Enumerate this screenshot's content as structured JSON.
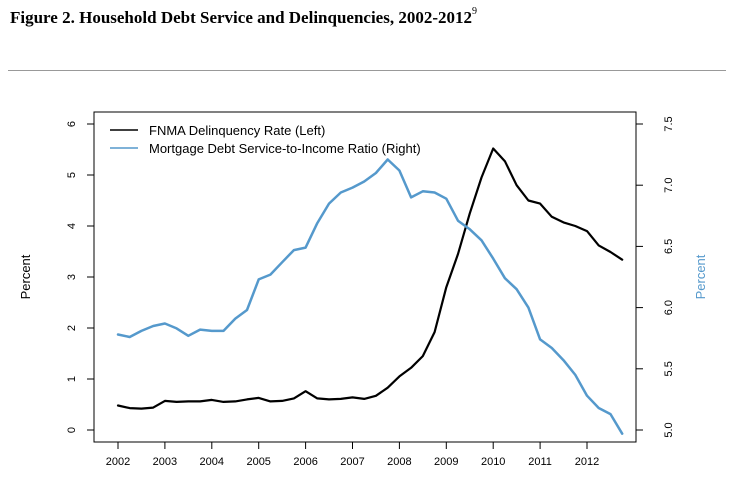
{
  "figure": {
    "title": "Figure 2. Household Debt Service and Delinquencies, 2002-2012",
    "footnote_marker": "9"
  },
  "chart_data": {
    "type": "line",
    "ylabel_left": "Percent",
    "ylabel_right": "Percent",
    "left_axis": {
      "ylim": [
        0,
        6
      ],
      "ticks": [
        0,
        1,
        2,
        3,
        4,
        5,
        6
      ]
    },
    "right_axis": {
      "ylim": [
        5.0,
        7.5
      ],
      "ticks": [
        5.0,
        5.5,
        6.0,
        6.5,
        7.0,
        7.5
      ],
      "tick_labels": [
        "5.0",
        "5.5",
        "6.0",
        "6.5",
        "7.0",
        "7.5"
      ]
    },
    "x_axis": {
      "ticks": [
        2002,
        2003,
        2004,
        2005,
        2006,
        2007,
        2008,
        2009,
        2010,
        2011,
        2012
      ],
      "tick_labels": [
        "2002",
        "2003",
        "2004",
        "2005",
        "2006",
        "2007",
        "2008",
        "2009",
        "2010",
        "2011",
        "2012"
      ]
    },
    "legend": {
      "placement": "top-left"
    },
    "grid": false,
    "series": [
      {
        "name": "FNMA Delinquency Rate (Left)",
        "axis": "left",
        "color": "#000000",
        "x": [
          2002.0,
          2002.25,
          2002.5,
          2002.75,
          2003.0,
          2003.25,
          2003.5,
          2003.75,
          2004.0,
          2004.25,
          2004.5,
          2004.75,
          2005.0,
          2005.25,
          2005.5,
          2005.75,
          2006.0,
          2006.25,
          2006.5,
          2006.75,
          2007.0,
          2007.25,
          2007.5,
          2007.75,
          2008.0,
          2008.25,
          2008.5,
          2008.75,
          2009.0,
          2009.25,
          2009.5,
          2009.75,
          2010.0,
          2010.25,
          2010.5,
          2010.75,
          2011.0,
          2011.25,
          2011.5,
          2011.75,
          2012.0,
          2012.25,
          2012.5,
          2012.75
        ],
        "y": [
          0.48,
          0.43,
          0.42,
          0.44,
          0.57,
          0.55,
          0.56,
          0.56,
          0.59,
          0.55,
          0.56,
          0.6,
          0.63,
          0.56,
          0.57,
          0.62,
          0.76,
          0.62,
          0.6,
          0.61,
          0.64,
          0.61,
          0.67,
          0.83,
          1.05,
          1.22,
          1.45,
          1.92,
          2.8,
          3.45,
          4.25,
          4.95,
          5.52,
          5.27,
          4.8,
          4.5,
          4.44,
          4.18,
          4.07,
          4.0,
          3.9,
          3.62,
          3.49,
          3.34
        ]
      },
      {
        "name": "Mortgage Debt Service-to-Income Ratio (Right)",
        "axis": "right",
        "color": "#5599cc",
        "x": [
          2002.0,
          2002.25,
          2002.5,
          2002.75,
          2003.0,
          2003.25,
          2003.5,
          2003.75,
          2004.0,
          2004.25,
          2004.5,
          2004.75,
          2005.0,
          2005.25,
          2005.5,
          2005.75,
          2006.0,
          2006.25,
          2006.5,
          2006.75,
          2007.0,
          2007.25,
          2007.5,
          2007.75,
          2008.0,
          2008.25,
          2008.5,
          2008.75,
          2009.0,
          2009.25,
          2009.5,
          2009.75,
          2010.0,
          2010.25,
          2010.5,
          2010.75,
          2011.0,
          2011.25,
          2011.5,
          2011.75,
          2012.0,
          2012.25,
          2012.5,
          2012.75
        ],
        "y": [
          5.78,
          5.76,
          5.81,
          5.85,
          5.87,
          5.83,
          5.77,
          5.82,
          5.81,
          5.81,
          5.91,
          5.98,
          6.23,
          6.27,
          6.37,
          6.47,
          6.49,
          6.69,
          6.85,
          6.94,
          6.98,
          7.03,
          7.1,
          7.21,
          7.12,
          6.9,
          6.95,
          6.94,
          6.89,
          6.71,
          6.64,
          6.55,
          6.4,
          6.24,
          6.15,
          6.0,
          5.74,
          5.67,
          5.57,
          5.45,
          5.28,
          5.18,
          5.13,
          4.97
        ]
      }
    ]
  }
}
